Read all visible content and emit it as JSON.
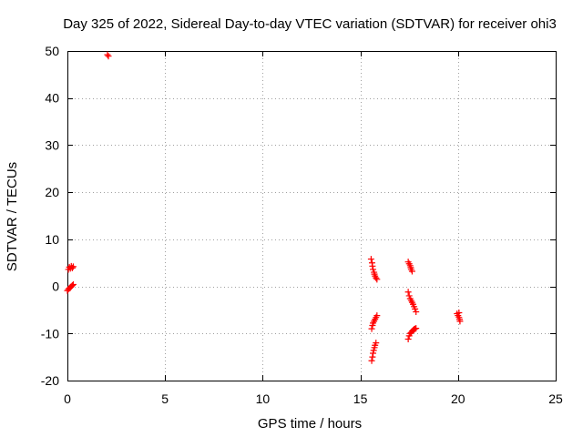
{
  "chart_data": {
    "type": "scatter",
    "title": "Day 325 of 2022, Sidereal Day-to-day VTEC variation (SDTVAR) for receiver ohi3",
    "xlabel": "GPS time / hours",
    "ylabel": "SDTVAR / TECUs",
    "xlim": [
      0,
      25
    ],
    "ylim": [
      -20,
      50
    ],
    "xticks": [
      0,
      5,
      10,
      15,
      20,
      25
    ],
    "yticks": [
      -20,
      -10,
      0,
      10,
      20,
      30,
      40,
      50
    ],
    "xtick_labels": [
      "0",
      "5",
      "10",
      "15",
      "20",
      "25"
    ],
    "ytick_labels": [
      "-20",
      "-10",
      "0",
      "10",
      "20",
      "30",
      "40",
      "50"
    ],
    "grid": true,
    "marker": "+",
    "marker_color": "#ff0000",
    "series": [
      {
        "name": "SDTVAR",
        "points": [
          [
            0.05,
            3.6
          ],
          [
            0.1,
            4.1
          ],
          [
            0.15,
            3.8
          ],
          [
            0.2,
            4.3
          ],
          [
            0.25,
            3.9
          ],
          [
            0.3,
            4.2
          ],
          [
            0.0,
            -0.9
          ],
          [
            0.05,
            -0.6
          ],
          [
            0.1,
            -0.4
          ],
          [
            0.15,
            -0.2
          ],
          [
            0.2,
            0.0
          ],
          [
            0.25,
            0.2
          ],
          [
            0.3,
            0.4
          ],
          [
            2.05,
            49.2
          ],
          [
            2.1,
            48.9
          ],
          [
            15.55,
            5.8
          ],
          [
            15.6,
            5.0
          ],
          [
            15.62,
            4.3
          ],
          [
            15.65,
            3.6
          ],
          [
            15.7,
            3.0
          ],
          [
            15.72,
            2.6
          ],
          [
            15.75,
            2.2
          ],
          [
            15.8,
            1.8
          ],
          [
            15.85,
            1.5
          ],
          [
            15.58,
            -9.0
          ],
          [
            15.62,
            -8.3
          ],
          [
            15.65,
            -7.8
          ],
          [
            15.7,
            -7.4
          ],
          [
            15.75,
            -7.0
          ],
          [
            15.8,
            -6.6
          ],
          [
            15.85,
            -6.2
          ],
          [
            15.58,
            -15.8
          ],
          [
            15.62,
            -15.0
          ],
          [
            15.65,
            -14.2
          ],
          [
            15.68,
            -13.6
          ],
          [
            15.72,
            -13.0
          ],
          [
            15.75,
            -12.5
          ],
          [
            15.8,
            -12.0
          ],
          [
            17.45,
            5.2
          ],
          [
            17.5,
            4.8
          ],
          [
            17.55,
            4.4
          ],
          [
            17.58,
            4.0
          ],
          [
            17.6,
            3.6
          ],
          [
            17.65,
            3.2
          ],
          [
            17.45,
            -1.2
          ],
          [
            17.5,
            -2.0
          ],
          [
            17.55,
            -2.6
          ],
          [
            17.6,
            -3.0
          ],
          [
            17.65,
            -3.4
          ],
          [
            17.7,
            -3.8
          ],
          [
            17.75,
            -4.3
          ],
          [
            17.8,
            -4.8
          ],
          [
            17.85,
            -5.4
          ],
          [
            17.45,
            -11.2
          ],
          [
            17.5,
            -10.5
          ],
          [
            17.55,
            -10.0
          ],
          [
            17.6,
            -9.8
          ],
          [
            17.65,
            -9.5
          ],
          [
            17.7,
            -9.3
          ],
          [
            17.75,
            -9.1
          ],
          [
            17.8,
            -9.0
          ],
          [
            17.85,
            -8.9
          ],
          [
            19.95,
            -5.8
          ],
          [
            20.0,
            -6.2
          ],
          [
            20.05,
            -6.6
          ],
          [
            20.08,
            -7.0
          ],
          [
            20.1,
            -7.4
          ],
          [
            20.05,
            -5.6
          ]
        ]
      }
    ]
  }
}
